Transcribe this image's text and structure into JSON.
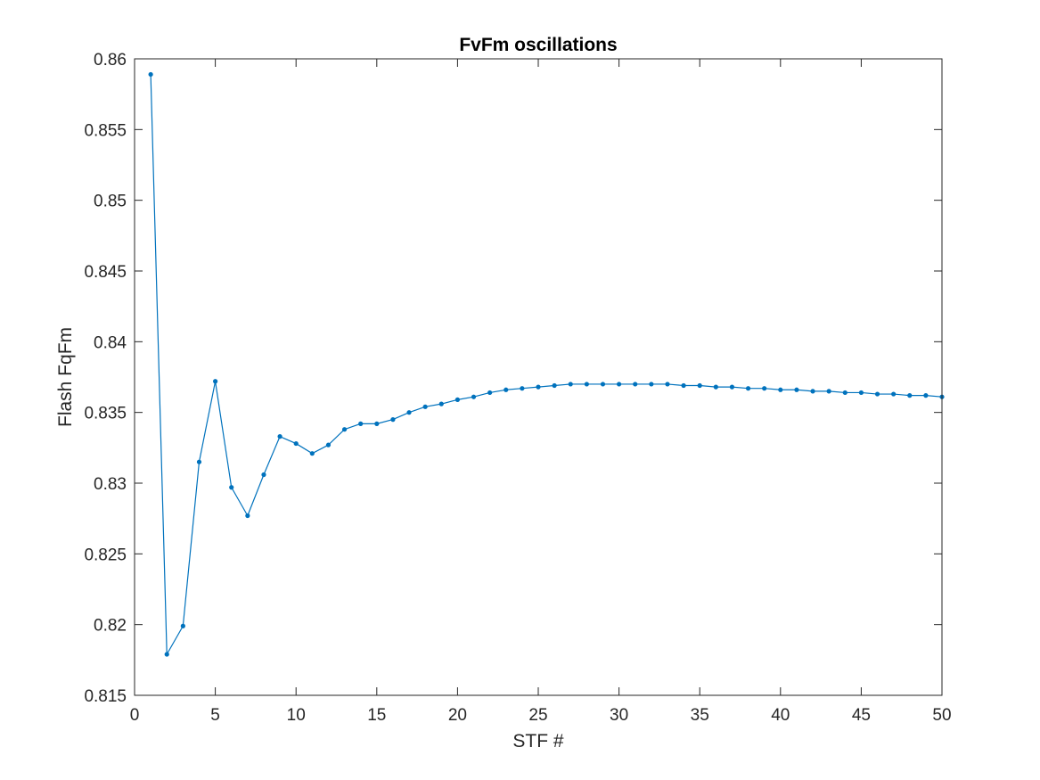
{
  "chart_data": {
    "type": "line",
    "title": "FvFm oscillations",
    "xlabel": "STF #",
    "ylabel": "Flash FqFm",
    "xlim": [
      0,
      50
    ],
    "ylim": [
      0.815,
      0.86
    ],
    "xticks": [
      0,
      5,
      10,
      15,
      20,
      25,
      30,
      35,
      40,
      45,
      50
    ],
    "xtick_labels": [
      "0",
      "5",
      "10",
      "15",
      "20",
      "25",
      "30",
      "35",
      "40",
      "45",
      "50"
    ],
    "yticks": [
      0.815,
      0.82,
      0.825,
      0.83,
      0.835,
      0.84,
      0.845,
      0.85,
      0.855,
      0.86
    ],
    "ytick_labels": [
      "0.815",
      "0.82",
      "0.825",
      "0.83",
      "0.835",
      "0.84",
      "0.845",
      "0.85",
      "0.855",
      "0.86"
    ],
    "grid": false,
    "legend": "none",
    "series": [
      {
        "color": "#0072BD",
        "marker": "dot",
        "x": [
          1,
          2,
          3,
          4,
          5,
          6,
          7,
          8,
          9,
          10,
          11,
          12,
          13,
          14,
          15,
          16,
          17,
          18,
          19,
          20,
          21,
          22,
          23,
          24,
          25,
          26,
          27,
          28,
          29,
          30,
          31,
          32,
          33,
          34,
          35,
          36,
          37,
          38,
          39,
          40,
          41,
          42,
          43,
          44,
          45,
          46,
          47,
          48,
          49,
          50
        ],
        "y": [
          0.8589,
          0.8179,
          0.8199,
          0.8315,
          0.8372,
          0.8297,
          0.8277,
          0.8306,
          0.8333,
          0.8328,
          0.8321,
          0.8327,
          0.8338,
          0.8342,
          0.8342,
          0.8345,
          0.835,
          0.8354,
          0.8356,
          0.8359,
          0.8361,
          0.8364,
          0.8366,
          0.8367,
          0.8368,
          0.8369,
          0.837,
          0.837,
          0.837,
          0.837,
          0.837,
          0.837,
          0.837,
          0.8369,
          0.8369,
          0.8368,
          0.8368,
          0.8367,
          0.8367,
          0.8366,
          0.8366,
          0.8365,
          0.8365,
          0.8364,
          0.8364,
          0.8363,
          0.8363,
          0.8362,
          0.8362,
          0.8361
        ]
      }
    ]
  }
}
